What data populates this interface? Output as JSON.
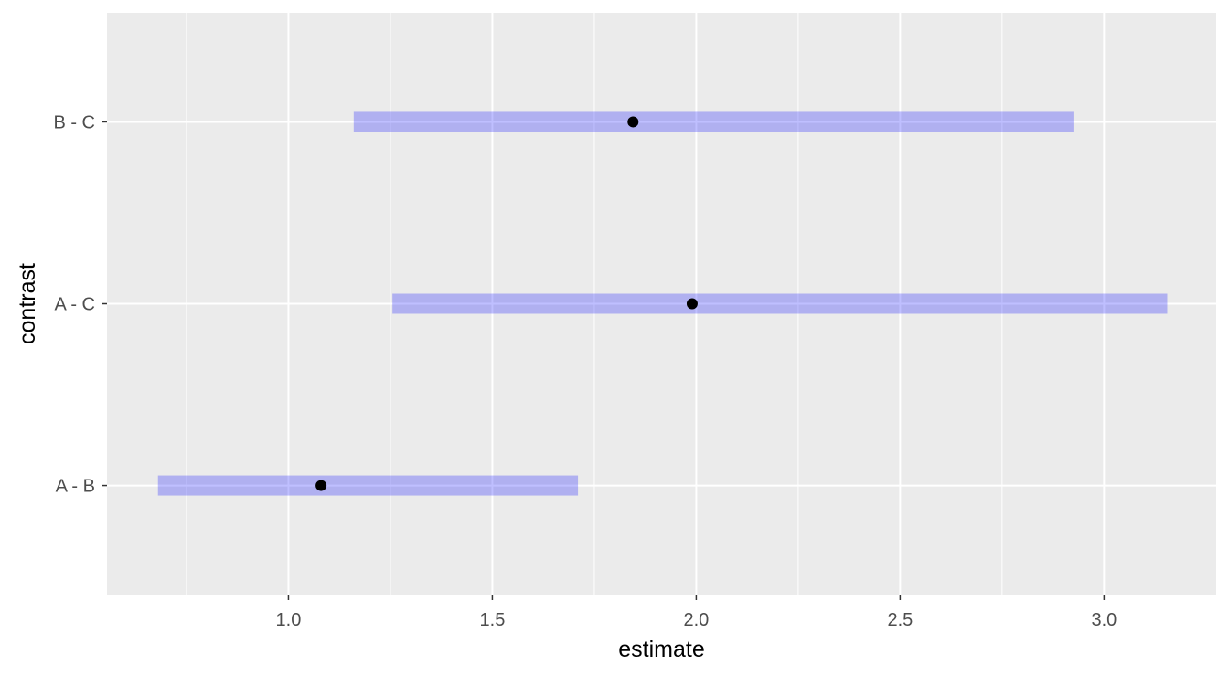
{
  "chart_data": {
    "type": "interval",
    "xlabel": "estimate",
    "ylabel": "contrast",
    "categories": [
      "A - B",
      "A - C",
      "B - C"
    ],
    "estimates": [
      1.08,
      1.99,
      1.845
    ],
    "lower": [
      0.68,
      1.255,
      1.16
    ],
    "upper": [
      1.71,
      3.155,
      2.925
    ],
    "xlim": [
      0.555,
      3.275
    ],
    "x_ticks": [
      1.0,
      1.5,
      2.0,
      2.5,
      3.0
    ],
    "x_tick_labels": [
      "1.0",
      "1.5",
      "2.0",
      "2.5",
      "3.0"
    ],
    "x_minor_ticks": [
      0.75,
      1.25,
      1.75,
      2.25,
      2.75
    ],
    "grid": true,
    "colors": {
      "panel_background": "#ebebeb",
      "grid_line": "#ffffff",
      "interval": "#0000ff",
      "interval_opacity": 0.25,
      "point": "#000000",
      "tick_mark": "#333333"
    }
  }
}
